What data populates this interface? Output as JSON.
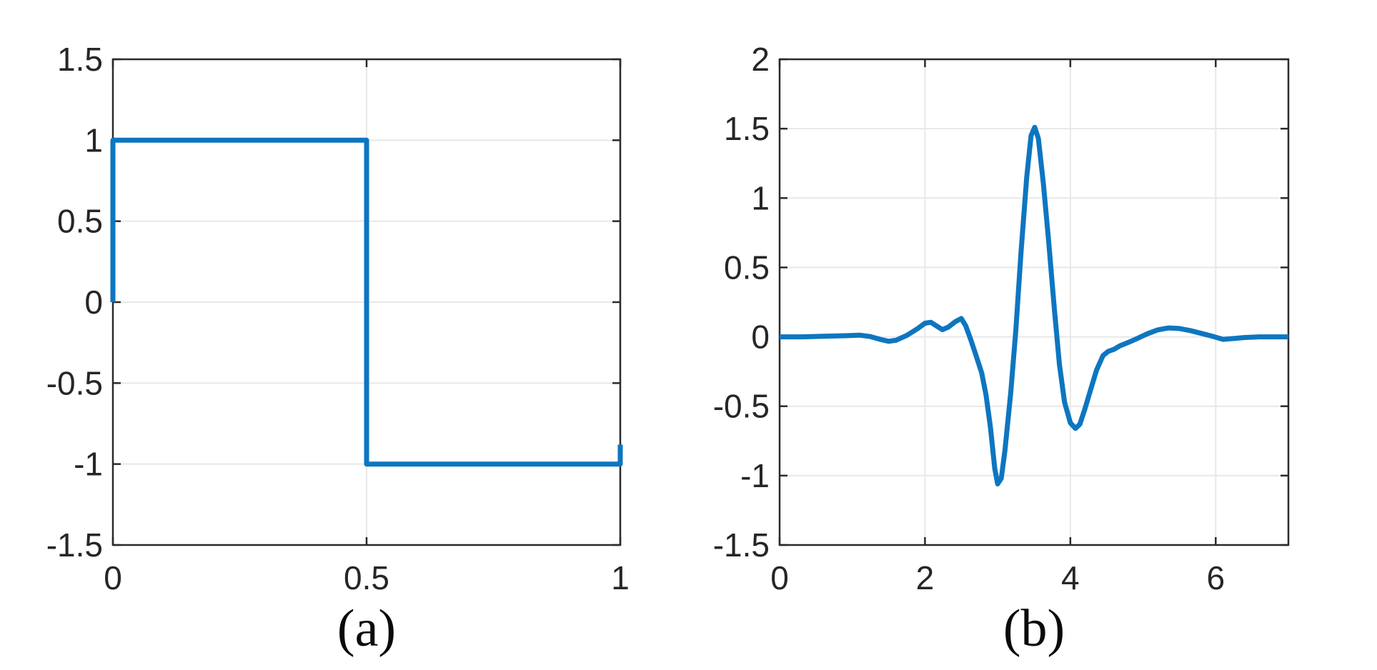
{
  "figure": {
    "background": "#ffffff",
    "axis_color": "#2a2a2a",
    "grid_color": "#e8e8e8"
  },
  "chart_data": [
    {
      "id": "a",
      "type": "line",
      "caption": "(a)",
      "title": "",
      "xlabel": "",
      "ylabel": "",
      "xlim": [
        0,
        1
      ],
      "ylim": [
        -1.5,
        1.5
      ],
      "xticks": [
        0,
        0.5,
        1
      ],
      "yticks": [
        -1.5,
        -1,
        -0.5,
        0,
        0.5,
        1,
        1.5
      ],
      "xtick_labels": [
        "0",
        "0.5",
        "1"
      ],
      "ytick_labels": [
        "-1.5",
        "-1",
        "-0.5",
        "0",
        "0.5",
        "1",
        "1.5"
      ],
      "grid": true,
      "legend": "none",
      "line_color": "#0d76c0",
      "points": [
        [
          0,
          0
        ],
        [
          0,
          1
        ],
        [
          0.5,
          1
        ],
        [
          0.5,
          -1
        ],
        [
          1,
          -1
        ],
        [
          1,
          -0.88
        ]
      ]
    },
    {
      "id": "b",
      "type": "line",
      "caption": "(b)",
      "title": "",
      "xlabel": "",
      "ylabel": "",
      "xlim": [
        0,
        7
      ],
      "ylim": [
        -1.5,
        2
      ],
      "xticks": [
        0,
        2,
        4,
        6
      ],
      "yticks": [
        -1.5,
        -1,
        -0.5,
        0,
        0.5,
        1,
        1.5,
        2
      ],
      "xtick_labels": [
        "0",
        "2",
        "4",
        "6"
      ],
      "ytick_labels": [
        "-1.5",
        "-1",
        "-0.5",
        "0",
        "0.5",
        "1",
        "1.5",
        "2"
      ],
      "grid": true,
      "legend": "none",
      "line_color": "#0d76c0",
      "points": [
        [
          0,
          0
        ],
        [
          0.3,
          0
        ],
        [
          0.6,
          0.004
        ],
        [
          0.9,
          0.008
        ],
        [
          1.1,
          0.012
        ],
        [
          1.25,
          0.002
        ],
        [
          1.4,
          -0.02
        ],
        [
          1.5,
          -0.032
        ],
        [
          1.6,
          -0.025
        ],
        [
          1.75,
          0.01
        ],
        [
          1.9,
          0.06
        ],
        [
          2.0,
          0.098
        ],
        [
          2.08,
          0.105
        ],
        [
          2.17,
          0.075
        ],
        [
          2.24,
          0.052
        ],
        [
          2.32,
          0.07
        ],
        [
          2.42,
          0.11
        ],
        [
          2.5,
          0.132
        ],
        [
          2.56,
          0.08
        ],
        [
          2.63,
          -0.02
        ],
        [
          2.7,
          -0.13
        ],
        [
          2.78,
          -0.26
        ],
        [
          2.84,
          -0.42
        ],
        [
          2.9,
          -0.65
        ],
        [
          2.96,
          -0.95
        ],
        [
          3.0,
          -1.06
        ],
        [
          3.05,
          -1.02
        ],
        [
          3.1,
          -0.82
        ],
        [
          3.18,
          -0.4
        ],
        [
          3.25,
          0.05
        ],
        [
          3.32,
          0.6
        ],
        [
          3.4,
          1.15
        ],
        [
          3.46,
          1.45
        ],
        [
          3.51,
          1.51
        ],
        [
          3.56,
          1.43
        ],
        [
          3.63,
          1.1
        ],
        [
          3.7,
          0.7
        ],
        [
          3.78,
          0.2
        ],
        [
          3.85,
          -0.2
        ],
        [
          3.92,
          -0.47
        ],
        [
          4.0,
          -0.62
        ],
        [
          4.07,
          -0.66
        ],
        [
          4.13,
          -0.63
        ],
        [
          4.2,
          -0.52
        ],
        [
          4.28,
          -0.38
        ],
        [
          4.36,
          -0.24
        ],
        [
          4.45,
          -0.135
        ],
        [
          4.52,
          -0.105
        ],
        [
          4.6,
          -0.09
        ],
        [
          4.68,
          -0.065
        ],
        [
          4.8,
          -0.04
        ],
        [
          4.92,
          -0.012
        ],
        [
          5.05,
          0.02
        ],
        [
          5.2,
          0.05
        ],
        [
          5.35,
          0.064
        ],
        [
          5.5,
          0.06
        ],
        [
          5.65,
          0.045
        ],
        [
          5.8,
          0.025
        ],
        [
          5.95,
          0.005
        ],
        [
          6.1,
          -0.018
        ],
        [
          6.25,
          -0.012
        ],
        [
          6.4,
          -0.005
        ],
        [
          6.6,
          0
        ],
        [
          6.8,
          0
        ],
        [
          7,
          0
        ]
      ]
    }
  ]
}
